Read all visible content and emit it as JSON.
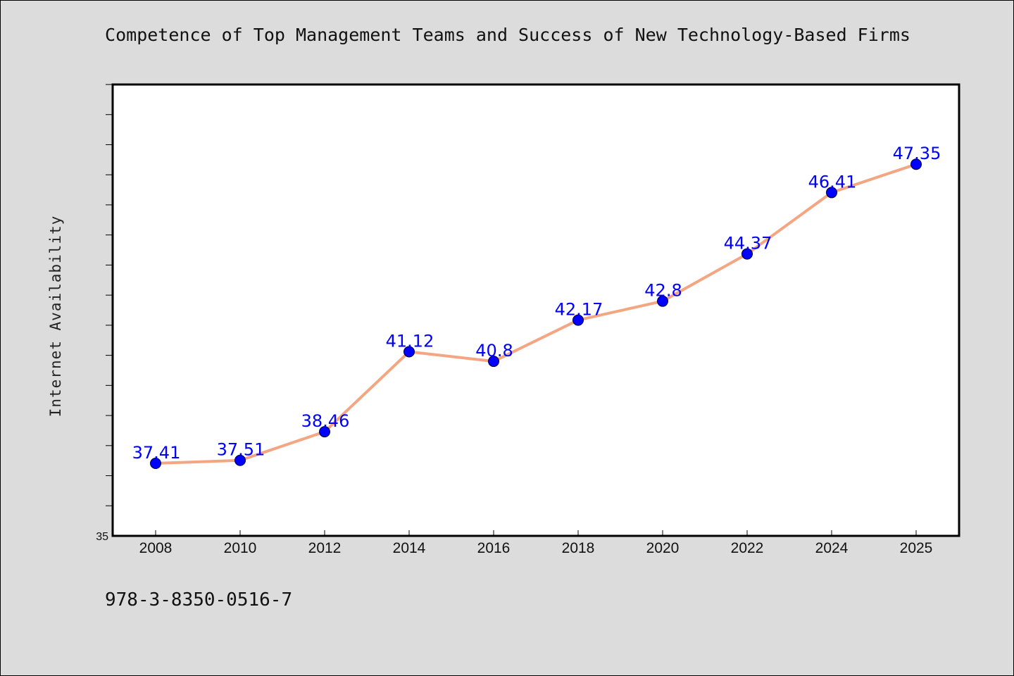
{
  "chart_data": {
    "type": "line",
    "title": "Competence of Top Management Teams and Success of New Technology-Based Firms",
    "xlabel": "",
    "ylabel": "Internet Availability",
    "categories": [
      "2008",
      "2010",
      "2012",
      "2014",
      "2016",
      "2018",
      "2020",
      "2022",
      "2024",
      "2025"
    ],
    "series": [
      {
        "values": [
          37.41,
          37.51,
          38.46,
          41.12,
          40.8,
          42.17,
          42.8,
          44.37,
          46.41,
          47.35
        ],
        "data_labels": [
          "37.41",
          "37.51",
          "38.46",
          "41.12",
          "40.8",
          "42.17",
          "42.8",
          "44.37",
          "46.41",
          "47.35"
        ]
      }
    ],
    "ylim": [
      35,
      50
    ],
    "y_tick_labels": [
      "35"
    ],
    "grid": false,
    "legend": "none",
    "colors": {
      "line": "#f4a582",
      "marker": "#0000ff",
      "data_label": "#0000ff",
      "plot_background": "#ffffff",
      "page_background": "#dcdcdc"
    }
  },
  "footer": {
    "code": "978-3-8350-0516-7"
  }
}
